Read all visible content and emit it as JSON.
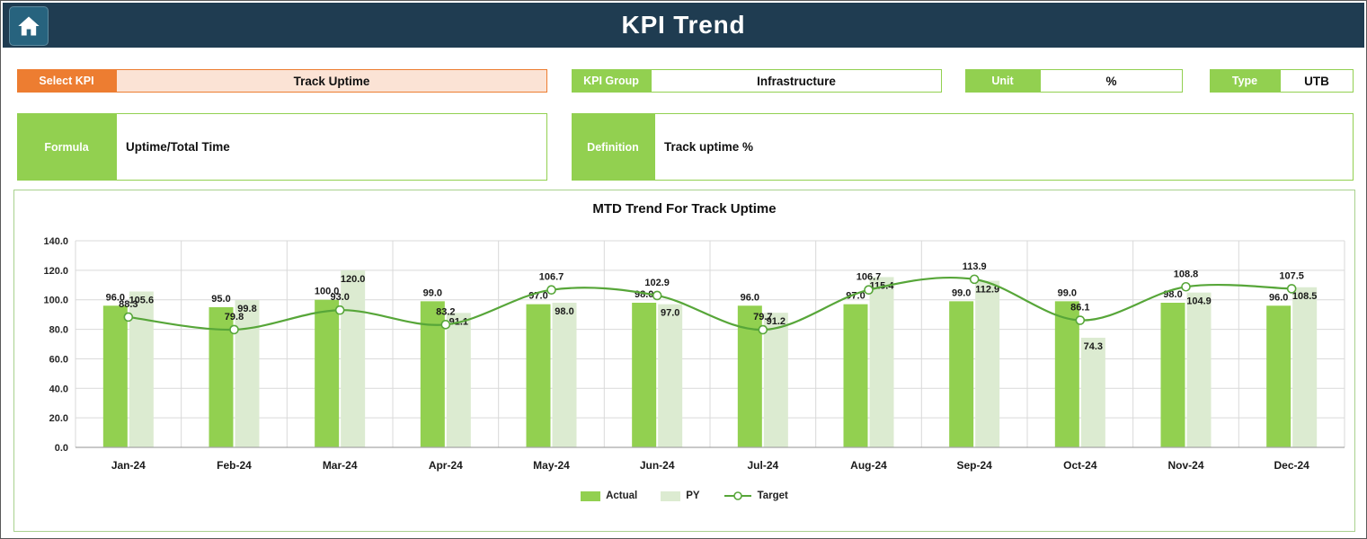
{
  "header": {
    "title": "KPI Trend"
  },
  "icons": {
    "home": "house-icon"
  },
  "filters": {
    "select_kpi": {
      "label": "Select KPI",
      "value": "Track Uptime"
    },
    "kpi_group": {
      "label": "KPI Group",
      "value": "Infrastructure"
    },
    "unit": {
      "label": "Unit",
      "value": "%"
    },
    "type": {
      "label": "Type",
      "value": "UTB"
    },
    "formula": {
      "label": "Formula",
      "value": "Uptime/Total Time"
    },
    "definition": {
      "label": "Definition",
      "value": "Track uptime %"
    }
  },
  "chart_data": {
    "type": "bar",
    "title": "MTD Trend For Track Uptime",
    "categories": [
      "Jan-24",
      "Feb-24",
      "Mar-24",
      "Apr-24",
      "May-24",
      "Jun-24",
      "Jul-24",
      "Aug-24",
      "Sep-24",
      "Oct-24",
      "Nov-24",
      "Dec-24"
    ],
    "series": [
      {
        "name": "Actual",
        "render": "bar",
        "color": "#92D050",
        "values": [
          96,
          95,
          100,
          99,
          97,
          98,
          96,
          97,
          99,
          99,
          98,
          96
        ]
      },
      {
        "name": "PY",
        "render": "bar",
        "color": "#DCEBD1",
        "values": [
          105.6,
          99.8,
          120,
          91.1,
          98,
          97,
          91.2,
          115.4,
          112.9,
          74.3,
          104.9,
          108.5
        ]
      },
      {
        "name": "Target",
        "render": "line",
        "color": "#57A639",
        "values": [
          88.3,
          79.8,
          93,
          83.2,
          106.7,
          102.9,
          79.7,
          106.7,
          113.9,
          86.1,
          108.8,
          107.5
        ]
      }
    ],
    "ylim": [
      0,
      140
    ],
    "ytick_step": 20,
    "ytick_labels": [
      "0.0",
      "20.0",
      "40.0",
      "60.0",
      "80.0",
      "100.0",
      "120.0",
      "140.0"
    ],
    "grid": true,
    "legend_position": "bottom",
    "value_format": "0.1f"
  },
  "colors": {
    "header_bg": "#1F3C51",
    "home_btn_bg": "#27637E",
    "accent_orange": "#ED7D31",
    "accent_orange_light": "#FBE3D5",
    "accent_green": "#92D050",
    "py_green": "#DCEBD1",
    "line_green": "#57A639",
    "panel_border": "#A9D18E",
    "grid_color": "#D9D9D9"
  }
}
